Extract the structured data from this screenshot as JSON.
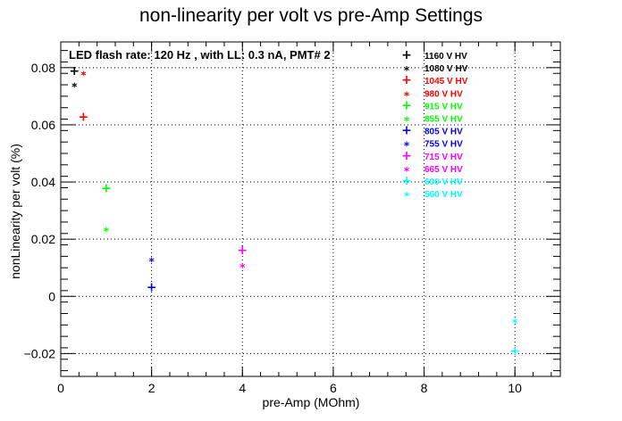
{
  "chart_data": {
    "type": "scatter",
    "title": "non-linearity per volt vs pre-Amp Settings",
    "xlabel": "pre-Amp (MOhm)",
    "ylabel": "nonLinearity per volt (%)",
    "annotation": "LED flash rate: 120 Hz , with LL: 0.3 nA, PMT# 2",
    "xlim": [
      0,
      11
    ],
    "ylim": [
      -0.028,
      0.089
    ],
    "x_ticks": [
      0,
      2,
      4,
      6,
      8,
      10
    ],
    "x_tick_labels": [
      "0",
      "2",
      "4",
      "6",
      "8",
      "10"
    ],
    "y_ticks": [
      -0.02,
      0,
      0.02,
      0.04,
      0.06,
      0.08
    ],
    "y_tick_labels": [
      "−0.02",
      "0",
      "0.02",
      "0.04",
      "0.06",
      "0.08"
    ],
    "grid": true,
    "legend_position": "top-right",
    "series": [
      {
        "name": "1160 V HV",
        "color": "#000000",
        "marker": "plus",
        "points": [
          {
            "x": 0.3,
            "y": 0.079
          }
        ]
      },
      {
        "name": "1080 V HV",
        "color": "#000000",
        "marker": "star",
        "points": [
          {
            "x": 0.3,
            "y": 0.0745
          }
        ]
      },
      {
        "name": "1045 V HV",
        "color": "#ff0000",
        "marker": "plus",
        "points": [
          {
            "x": 0.5,
            "y": 0.063
          }
        ]
      },
      {
        "name": "980 V HV",
        "color": "#ff0000",
        "marker": "star",
        "points": [
          {
            "x": 0.5,
            "y": 0.0785
          }
        ]
      },
      {
        "name": "915 V HV",
        "color": "#00ff00",
        "marker": "plus",
        "points": [
          {
            "x": 1.0,
            "y": 0.038
          }
        ]
      },
      {
        "name": "855 V HV",
        "color": "#00ff00",
        "marker": "star",
        "points": [
          {
            "x": 1.0,
            "y": 0.024
          }
        ]
      },
      {
        "name": "805 V HV",
        "color": "#0000ff",
        "marker": "plus",
        "points": [
          {
            "x": 2.0,
            "y": 0.0033
          }
        ]
      },
      {
        "name": "755 V HV",
        "color": "#0000ff",
        "marker": "star",
        "points": [
          {
            "x": 2.0,
            "y": 0.0133
          }
        ]
      },
      {
        "name": "715 V HV",
        "color": "#ff00ff",
        "marker": "plus",
        "points": [
          {
            "x": 4.0,
            "y": 0.0163
          }
        ]
      },
      {
        "name": "665 V HV",
        "color": "#ff00ff",
        "marker": "star",
        "points": [
          {
            "x": 4.0,
            "y": 0.0113
          }
        ]
      },
      {
        "name": "600 V HV",
        "color": "#00ffff",
        "marker": "plus",
        "points": [
          {
            "x": 10.0,
            "y": -0.019
          }
        ]
      },
      {
        "name": "560 V HV",
        "color": "#00ffff",
        "marker": "star",
        "points": [
          {
            "x": 10.0,
            "y": -0.008
          }
        ]
      }
    ]
  }
}
